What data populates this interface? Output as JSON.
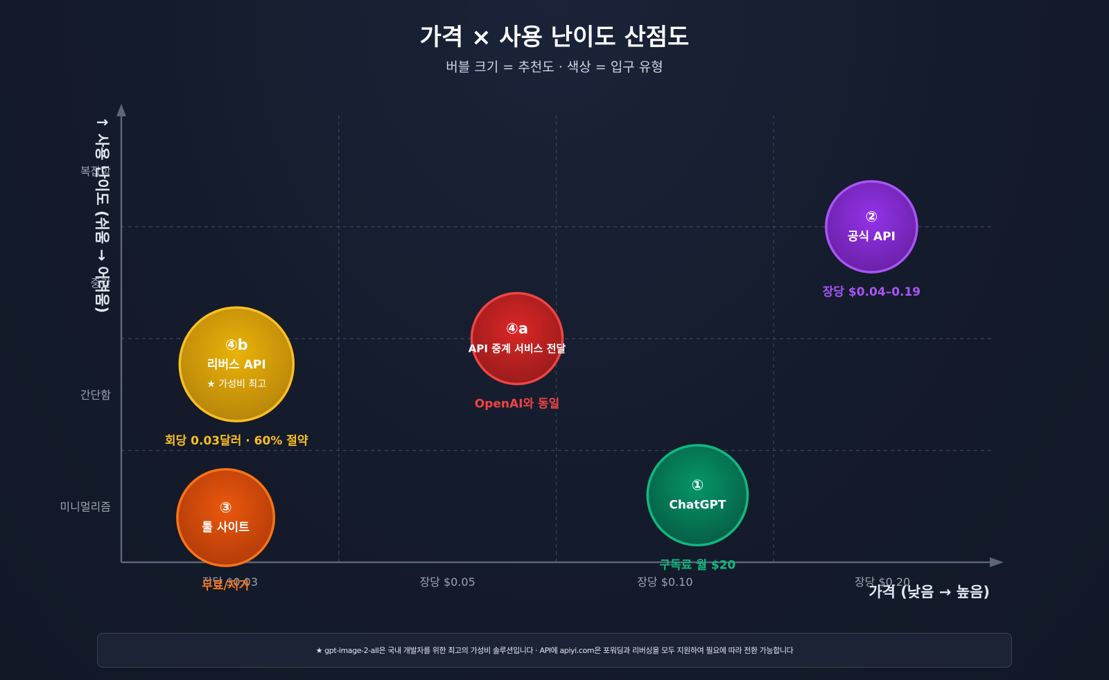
{
  "title": "가격 × 사용 난이도 산점도",
  "subtitle": "버블 크기 = 추천도 · 색상 = 입구 유형",
  "footer_note": "★ gpt-image-2-all은 국내 개발자를 위한 최고의 가성비 솔루션입니다 · API에 apiyi.com은 포워딩과 리버싱을 모두 지원하여 필요에 따라 전환 가능합니다",
  "chart_data": {
    "type": "scatter",
    "xlabel": "가격 (낮음 → 높음)",
    "ylabel": "↑ 사용 난이도 (쉬움 → 어려움)",
    "x_ticks": [
      "장당 $0.03",
      "장당 $0.05",
      "장당 $0.10",
      "장당 $0.20"
    ],
    "y_ticks": [
      "미니멀리즘",
      "간단함",
      "중간",
      "복잡함"
    ],
    "x_range": [
      0,
      4
    ],
    "y_range": [
      0,
      4
    ],
    "bubbles": [
      {
        "id": "4b",
        "x": 0.53,
        "y": 1.77,
        "size": 1.0,
        "badge": "④b",
        "name": "리버스 API",
        "tag": "★ 가성비 최고",
        "note": "회당 0.03달러 · 60% 절약",
        "color": "#eab308",
        "dark": "#b8860b",
        "note_color": "#fbbf24"
      },
      {
        "id": "4a",
        "x": 1.82,
        "y": 2.0,
        "size": 0.8,
        "badge": "④a",
        "name": "API 중계 서비스 전달",
        "tag": "",
        "note": "OpenAI와 동일",
        "color": "#dc2626",
        "dark": "#9b1c1c",
        "note_color": "#ef4444"
      },
      {
        "id": "2",
        "x": 3.45,
        "y": 3.0,
        "size": 0.8,
        "badge": "②",
        "name": "공식 API",
        "tag": "",
        "note": "장당 $0.04–0.19",
        "color": "#9333ea",
        "dark": "#6b21a8",
        "note_color": "#a855f7"
      },
      {
        "id": "3",
        "x": 0.48,
        "y": 0.4,
        "size": 0.85,
        "badge": "③",
        "name": "툴 사이트",
        "tag": "",
        "note": "무료/저가",
        "color": "#ea580c",
        "dark": "#b43c0a",
        "note_color": "#f97316"
      },
      {
        "id": "1",
        "x": 2.65,
        "y": 0.6,
        "size": 0.88,
        "badge": "①",
        "name": "ChatGPT",
        "tag": "",
        "note": "구독료 월 $20",
        "color": "#059669",
        "dark": "#065f46",
        "note_color": "#10b981"
      }
    ]
  }
}
